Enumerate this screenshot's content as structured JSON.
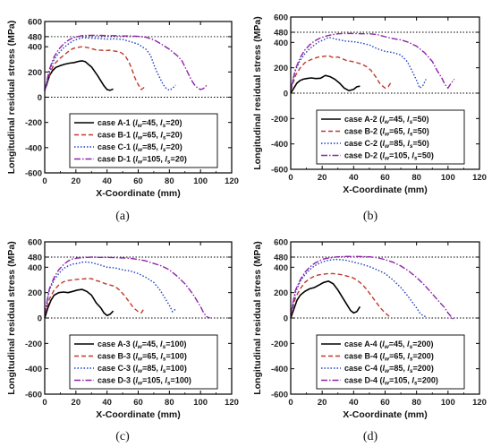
{
  "chart_data": [
    {
      "type": "line",
      "caption": "(a)",
      "xlabel": "X-Coordinate (mm)",
      "ylabel": "Longitudinal residual stress (MPa)",
      "xlim": [
        0,
        120
      ],
      "ylim": [
        -600,
        600
      ],
      "xticks": [
        "0",
        "20",
        "40",
        "60",
        "80",
        "100",
        "120"
      ],
      "yticks": [
        "-600",
        "-400",
        "-200",
        "0",
        "200",
        "400",
        "480",
        "600"
      ],
      "reference_lines": [
        480,
        0
      ],
      "legend_position": "bottom-center",
      "legend": [
        "case A-1 (lw=45, ls=20)",
        "case B-1 (lw=65, ls=20)",
        "case C-1 (lw=85, ls=20)",
        "case D-1 (lw=105, ls=20)"
      ],
      "series": [
        {
          "name": "case A-1 (lw=45, ls=20)",
          "style": "solid",
          "color": "#000000",
          "x": [
            0,
            1,
            2,
            3,
            5,
            7,
            10,
            13,
            16,
            19,
            22,
            24,
            26,
            28,
            30,
            32,
            34,
            36,
            38,
            40,
            42,
            44
          ],
          "y": [
            60,
            90,
            130,
            170,
            210,
            235,
            250,
            262,
            270,
            275,
            285,
            288,
            282,
            260,
            240,
            205,
            170,
            130,
            90,
            60,
            55,
            65
          ]
        },
        {
          "name": "case B-1 (lw=65, ls=20)",
          "style": "dashed",
          "color": "#c0392b",
          "x": [
            0,
            2,
            4,
            6,
            9,
            12,
            15,
            18,
            21,
            24,
            27,
            30,
            33,
            36,
            39,
            42,
            45,
            48,
            50,
            52,
            54,
            56,
            58,
            60,
            62,
            64
          ],
          "y": [
            55,
            140,
            210,
            260,
            300,
            330,
            360,
            385,
            395,
            400,
            395,
            385,
            375,
            372,
            370,
            372,
            365,
            360,
            345,
            320,
            280,
            220,
            150,
            100,
            60,
            80
          ]
        },
        {
          "name": "case C-1 (lw=85, ls=20)",
          "style": "dotted",
          "color": "#1f3fbf",
          "x": [
            0,
            3,
            6,
            9,
            12,
            15,
            18,
            21,
            24,
            27,
            30,
            35,
            40,
            45,
            50,
            55,
            60,
            65,
            68,
            70,
            72,
            74,
            76,
            78,
            80,
            82,
            84
          ],
          "y": [
            50,
            200,
            300,
            350,
            390,
            420,
            445,
            460,
            470,
            470,
            468,
            465,
            460,
            462,
            458,
            440,
            420,
            380,
            330,
            260,
            200,
            150,
            100,
            70,
            55,
            70,
            95
          ]
        },
        {
          "name": "case D-1 (lw=105, ls=20)",
          "style": "dashdot",
          "color": "#8e24aa",
          "x": [
            0,
            3,
            6,
            9,
            12,
            15,
            18,
            21,
            24,
            27,
            30,
            35,
            40,
            45,
            50,
            55,
            60,
            65,
            70,
            75,
            80,
            85,
            88,
            90,
            92,
            94,
            96,
            98,
            100,
            102,
            104
          ],
          "y": [
            50,
            220,
            320,
            380,
            420,
            450,
            470,
            480,
            488,
            490,
            490,
            490,
            488,
            488,
            485,
            485,
            482,
            475,
            455,
            420,
            380,
            330,
            290,
            240,
            190,
            140,
            100,
            75,
            60,
            70,
            95
          ]
        }
      ]
    },
    {
      "type": "line",
      "caption": "(b)",
      "xlabel": "X-Coordinate (mm)",
      "ylabel": "Longitudinal residual stress (MPa)",
      "xlim": [
        0,
        120
      ],
      "ylim": [
        -600,
        600
      ],
      "xticks": [
        "0",
        "20",
        "40",
        "60",
        "80",
        "100",
        "120"
      ],
      "yticks": [
        "-600",
        "-400",
        "-200",
        "0",
        "200",
        "400",
        "480",
        "600"
      ],
      "reference_lines": [
        480,
        0
      ],
      "legend_position": "bottom-center",
      "legend": [
        "case A-2 (lw=45, ls=50)",
        "case B-2 (lw=65, ls=50)",
        "case C-2 (lw=85, ls=50)",
        "case D-2 (lw=105, ls=50)"
      ],
      "series": [
        {
          "name": "case A-2 (lw=45, ls=50)",
          "style": "solid",
          "color": "#000000",
          "x": [
            0,
            2,
            4,
            6,
            8,
            10,
            13,
            16,
            19,
            22,
            25,
            28,
            31,
            34,
            37,
            40,
            42,
            44
          ],
          "y": [
            0,
            40,
            80,
            100,
            110,
            115,
            120,
            115,
            118,
            140,
            130,
            110,
            80,
            40,
            20,
            30,
            50,
            55
          ]
        },
        {
          "name": "case B-2 (lw=65, ls=50)",
          "style": "dashed",
          "color": "#c0392b",
          "x": [
            0,
            3,
            6,
            9,
            12,
            15,
            18,
            21,
            24,
            27,
            30,
            33,
            36,
            39,
            42,
            45,
            48,
            51,
            54,
            57,
            60,
            62,
            64
          ],
          "y": [
            20,
            140,
            200,
            240,
            260,
            275,
            285,
            290,
            295,
            280,
            285,
            270,
            255,
            250,
            240,
            230,
            210,
            180,
            130,
            70,
            40,
            50,
            90
          ]
        },
        {
          "name": "case C-2 (lw=85, ls=50)",
          "style": "dotted",
          "color": "#1f3fbf",
          "x": [
            0,
            3,
            6,
            9,
            12,
            15,
            18,
            21,
            24,
            27,
            30,
            35,
            40,
            45,
            50,
            55,
            60,
            65,
            70,
            74,
            77,
            80,
            82,
            84,
            86
          ],
          "y": [
            30,
            180,
            260,
            310,
            350,
            380,
            405,
            420,
            440,
            432,
            422,
            410,
            405,
            395,
            380,
            350,
            330,
            320,
            300,
            250,
            180,
            100,
            40,
            60,
            110
          ]
        },
        {
          "name": "case D-2 (lw=105, ls=50)",
          "style": "dashdot",
          "color": "#8e24aa",
          "x": [
            0,
            3,
            6,
            9,
            12,
            15,
            18,
            21,
            24,
            27,
            30,
            35,
            40,
            45,
            50,
            55,
            60,
            65,
            70,
            75,
            80,
            85,
            90,
            93,
            96,
            98,
            100,
            102,
            104
          ],
          "y": [
            30,
            190,
            280,
            340,
            380,
            410,
            430,
            445,
            455,
            462,
            468,
            470,
            470,
            468,
            468,
            462,
            445,
            430,
            420,
            400,
            370,
            320,
            250,
            180,
            120,
            70,
            40,
            80,
            110
          ]
        }
      ]
    },
    {
      "type": "line",
      "caption": "(c)",
      "xlabel": "X-Coordinate (mm)",
      "ylabel": "Longitudinal residual stress (MPa)",
      "xlim": [
        0,
        120
      ],
      "ylim": [
        -600,
        600
      ],
      "xticks": [
        "0",
        "20",
        "40",
        "60",
        "80",
        "100",
        "120"
      ],
      "yticks": [
        "-600",
        "-400",
        "-200",
        "0",
        "200",
        "400",
        "480",
        "600"
      ],
      "reference_lines": [
        480,
        0
      ],
      "legend_position": "bottom-center",
      "legend": [
        "case A-3 (lw=45, ls=100)",
        "case B-3 (lw=65, ls=100)",
        "case C-3 (lw=85, ls=100)",
        "case D-3 (lw=105, ls=100)"
      ],
      "series": [
        {
          "name": "case A-3 (lw=45, ls=100)",
          "style": "solid",
          "color": "#000000",
          "x": [
            0,
            2,
            4,
            6,
            9,
            12,
            15,
            18,
            21,
            24,
            27,
            30,
            33,
            36,
            38,
            40,
            42,
            44
          ],
          "y": [
            0,
            80,
            140,
            180,
            200,
            205,
            200,
            210,
            220,
            225,
            210,
            180,
            120,
            80,
            40,
            20,
            30,
            55
          ]
        },
        {
          "name": "case B-3 (lw=65, ls=100)",
          "style": "dashed",
          "color": "#c0392b",
          "x": [
            0,
            3,
            6,
            9,
            12,
            15,
            18,
            21,
            24,
            27,
            30,
            33,
            36,
            39,
            42,
            45,
            48,
            51,
            54,
            57,
            60,
            62,
            64
          ],
          "y": [
            30,
            150,
            220,
            260,
            285,
            295,
            300,
            305,
            308,
            310,
            310,
            295,
            285,
            270,
            260,
            250,
            220,
            180,
            130,
            80,
            50,
            40,
            80
          ]
        },
        {
          "name": "case C-3 (lw=85, ls=100)",
          "style": "dotted",
          "color": "#1f3fbf",
          "x": [
            0,
            3,
            6,
            9,
            12,
            15,
            18,
            21,
            24,
            27,
            30,
            35,
            40,
            45,
            50,
            55,
            60,
            65,
            70,
            74,
            77,
            80,
            82,
            84
          ],
          "y": [
            40,
            220,
            300,
            350,
            390,
            410,
            425,
            430,
            440,
            442,
            436,
            420,
            400,
            395,
            380,
            370,
            350,
            320,
            280,
            220,
            160,
            100,
            50,
            70
          ]
        },
        {
          "name": "case D-3 (lw=105, ls=100)",
          "style": "dashdot",
          "color": "#8e24aa",
          "x": [
            0,
            3,
            6,
            9,
            12,
            15,
            18,
            21,
            24,
            27,
            30,
            35,
            40,
            45,
            50,
            55,
            60,
            65,
            70,
            75,
            80,
            85,
            90,
            95,
            98,
            100,
            102,
            104,
            106
          ],
          "y": [
            30,
            230,
            320,
            380,
            420,
            450,
            465,
            472,
            475,
            478,
            480,
            478,
            478,
            476,
            474,
            470,
            462,
            450,
            430,
            410,
            380,
            330,
            270,
            190,
            130,
            90,
            40,
            10,
            0
          ]
        }
      ]
    },
    {
      "type": "line",
      "caption": "(d)",
      "xlabel": "X-Coordinate (mm)",
      "ylabel": "Longitudinal residual stress (MPa)",
      "xlim": [
        0,
        120
      ],
      "ylim": [
        -600,
        600
      ],
      "xticks": [
        "0",
        "20",
        "40",
        "60",
        "80",
        "100",
        "120"
      ],
      "yticks": [
        "-600",
        "-400",
        "-200",
        "0",
        "200",
        "400",
        "480",
        "600"
      ],
      "reference_lines": [
        480,
        0
      ],
      "legend_position": "bottom-center",
      "legend": [
        "case A-4 (lw=45, ls=200)",
        "case B-4 (lw=65, ls=200)",
        "case C-4 (lw=85, ls=200)",
        "case D-4 (lw=105, ls=200)"
      ],
      "series": [
        {
          "name": "case A-4 (lw=45, ls=200)",
          "style": "solid",
          "color": "#000000",
          "x": [
            0,
            2,
            4,
            6,
            9,
            12,
            15,
            18,
            21,
            24,
            27,
            30,
            33,
            36,
            38,
            40,
            42,
            44
          ],
          "y": [
            0,
            70,
            140,
            180,
            210,
            230,
            240,
            260,
            280,
            290,
            270,
            220,
            160,
            100,
            60,
            40,
            50,
            90
          ]
        },
        {
          "name": "case B-4 (lw=65, ls=200)",
          "style": "dashed",
          "color": "#c0392b",
          "x": [
            0,
            3,
            6,
            9,
            12,
            15,
            18,
            21,
            24,
            27,
            30,
            33,
            36,
            39,
            42,
            45,
            48,
            51,
            54,
            57,
            60,
            62,
            64
          ],
          "y": [
            20,
            160,
            230,
            280,
            310,
            330,
            340,
            345,
            350,
            350,
            345,
            340,
            330,
            320,
            300,
            270,
            230,
            180,
            130,
            80,
            40,
            20,
            5
          ]
        },
        {
          "name": "case C-4 (lw=85, ls=200)",
          "style": "dotted",
          "color": "#1f3fbf",
          "x": [
            0,
            3,
            6,
            9,
            12,
            15,
            18,
            21,
            24,
            27,
            30,
            35,
            40,
            45,
            50,
            55,
            60,
            65,
            70,
            74,
            77,
            80,
            82,
            84,
            86
          ],
          "y": [
            30,
            200,
            290,
            340,
            380,
            410,
            430,
            445,
            455,
            460,
            462,
            455,
            440,
            425,
            405,
            380,
            350,
            300,
            240,
            180,
            130,
            80,
            40,
            20,
            10
          ]
        },
        {
          "name": "case D-4 (lw=105, ls=200)",
          "style": "dashdot",
          "color": "#8e24aa",
          "x": [
            0,
            3,
            6,
            9,
            12,
            15,
            18,
            21,
            24,
            27,
            30,
            35,
            40,
            45,
            50,
            55,
            60,
            65,
            70,
            75,
            80,
            85,
            90,
            95,
            98,
            100,
            102,
            104
          ],
          "y": [
            30,
            220,
            300,
            360,
            400,
            430,
            450,
            465,
            472,
            478,
            482,
            485,
            485,
            484,
            482,
            475,
            460,
            440,
            410,
            370,
            320,
            260,
            190,
            120,
            80,
            40,
            10,
            -20
          ]
        }
      ]
    }
  ]
}
